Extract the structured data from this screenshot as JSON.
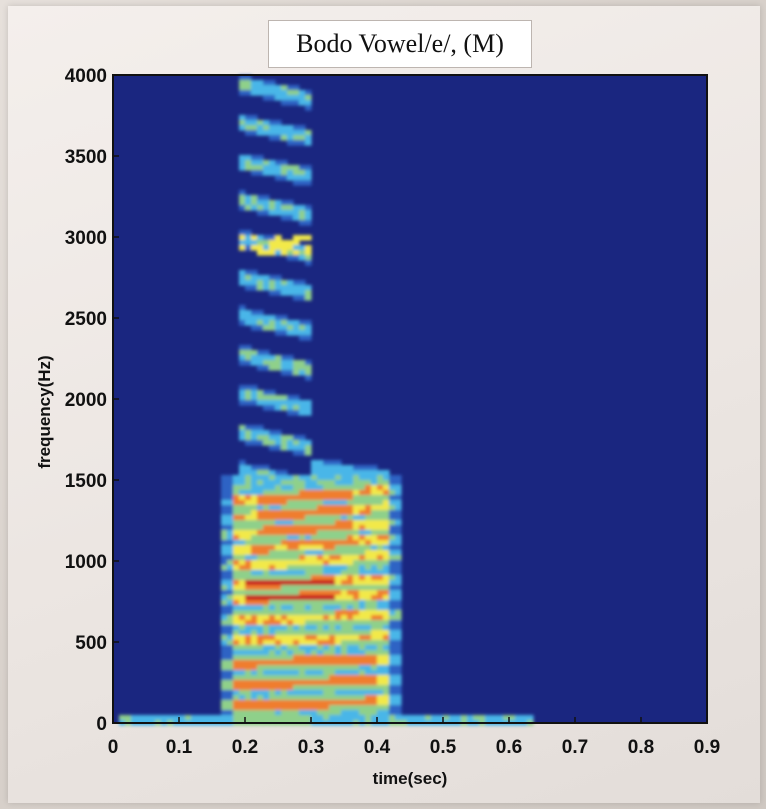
{
  "chart_data": {
    "type": "heatmap",
    "title": "Bodo Vowel/e/, (M)",
    "xlabel": "time(sec)",
    "ylabel": "frequency(Hz)",
    "xlim": [
      0,
      0.9
    ],
    "ylim": [
      0,
      4000
    ],
    "x_ticks": [
      "0",
      "0.1",
      "0.2",
      "0.3",
      "0.4",
      "0.5",
      "0.6",
      "0.7",
      "0.8",
      "0.9"
    ],
    "y_ticks": [
      "0",
      "500",
      "1000",
      "1500",
      "2000",
      "2500",
      "3000",
      "3500",
      "4000"
    ],
    "grid": false,
    "legend": "none",
    "colormap": [
      "#1a2680",
      "#2f64c4",
      "#49b6e8",
      "#8fd08a",
      "#f2e94a",
      "#f07d2d",
      "#c8141e"
    ],
    "background_color": "#1a2680",
    "voiced_segment": {
      "start_sec": 0.18,
      "end_sec": 0.42,
      "strong_energy_upper_hz": 1500,
      "harmonic_bands_hz": [
        120,
        250,
        380,
        520,
        650,
        780,
        870,
        1000,
        1100,
        1200,
        1300,
        1400
      ],
      "peak_energy_region": {
        "time_sec": [
          0.2,
          0.34
        ],
        "frequency_hz": [
          700,
          950
        ]
      },
      "low_frequency_tail_end_sec": 0.64
    }
  }
}
